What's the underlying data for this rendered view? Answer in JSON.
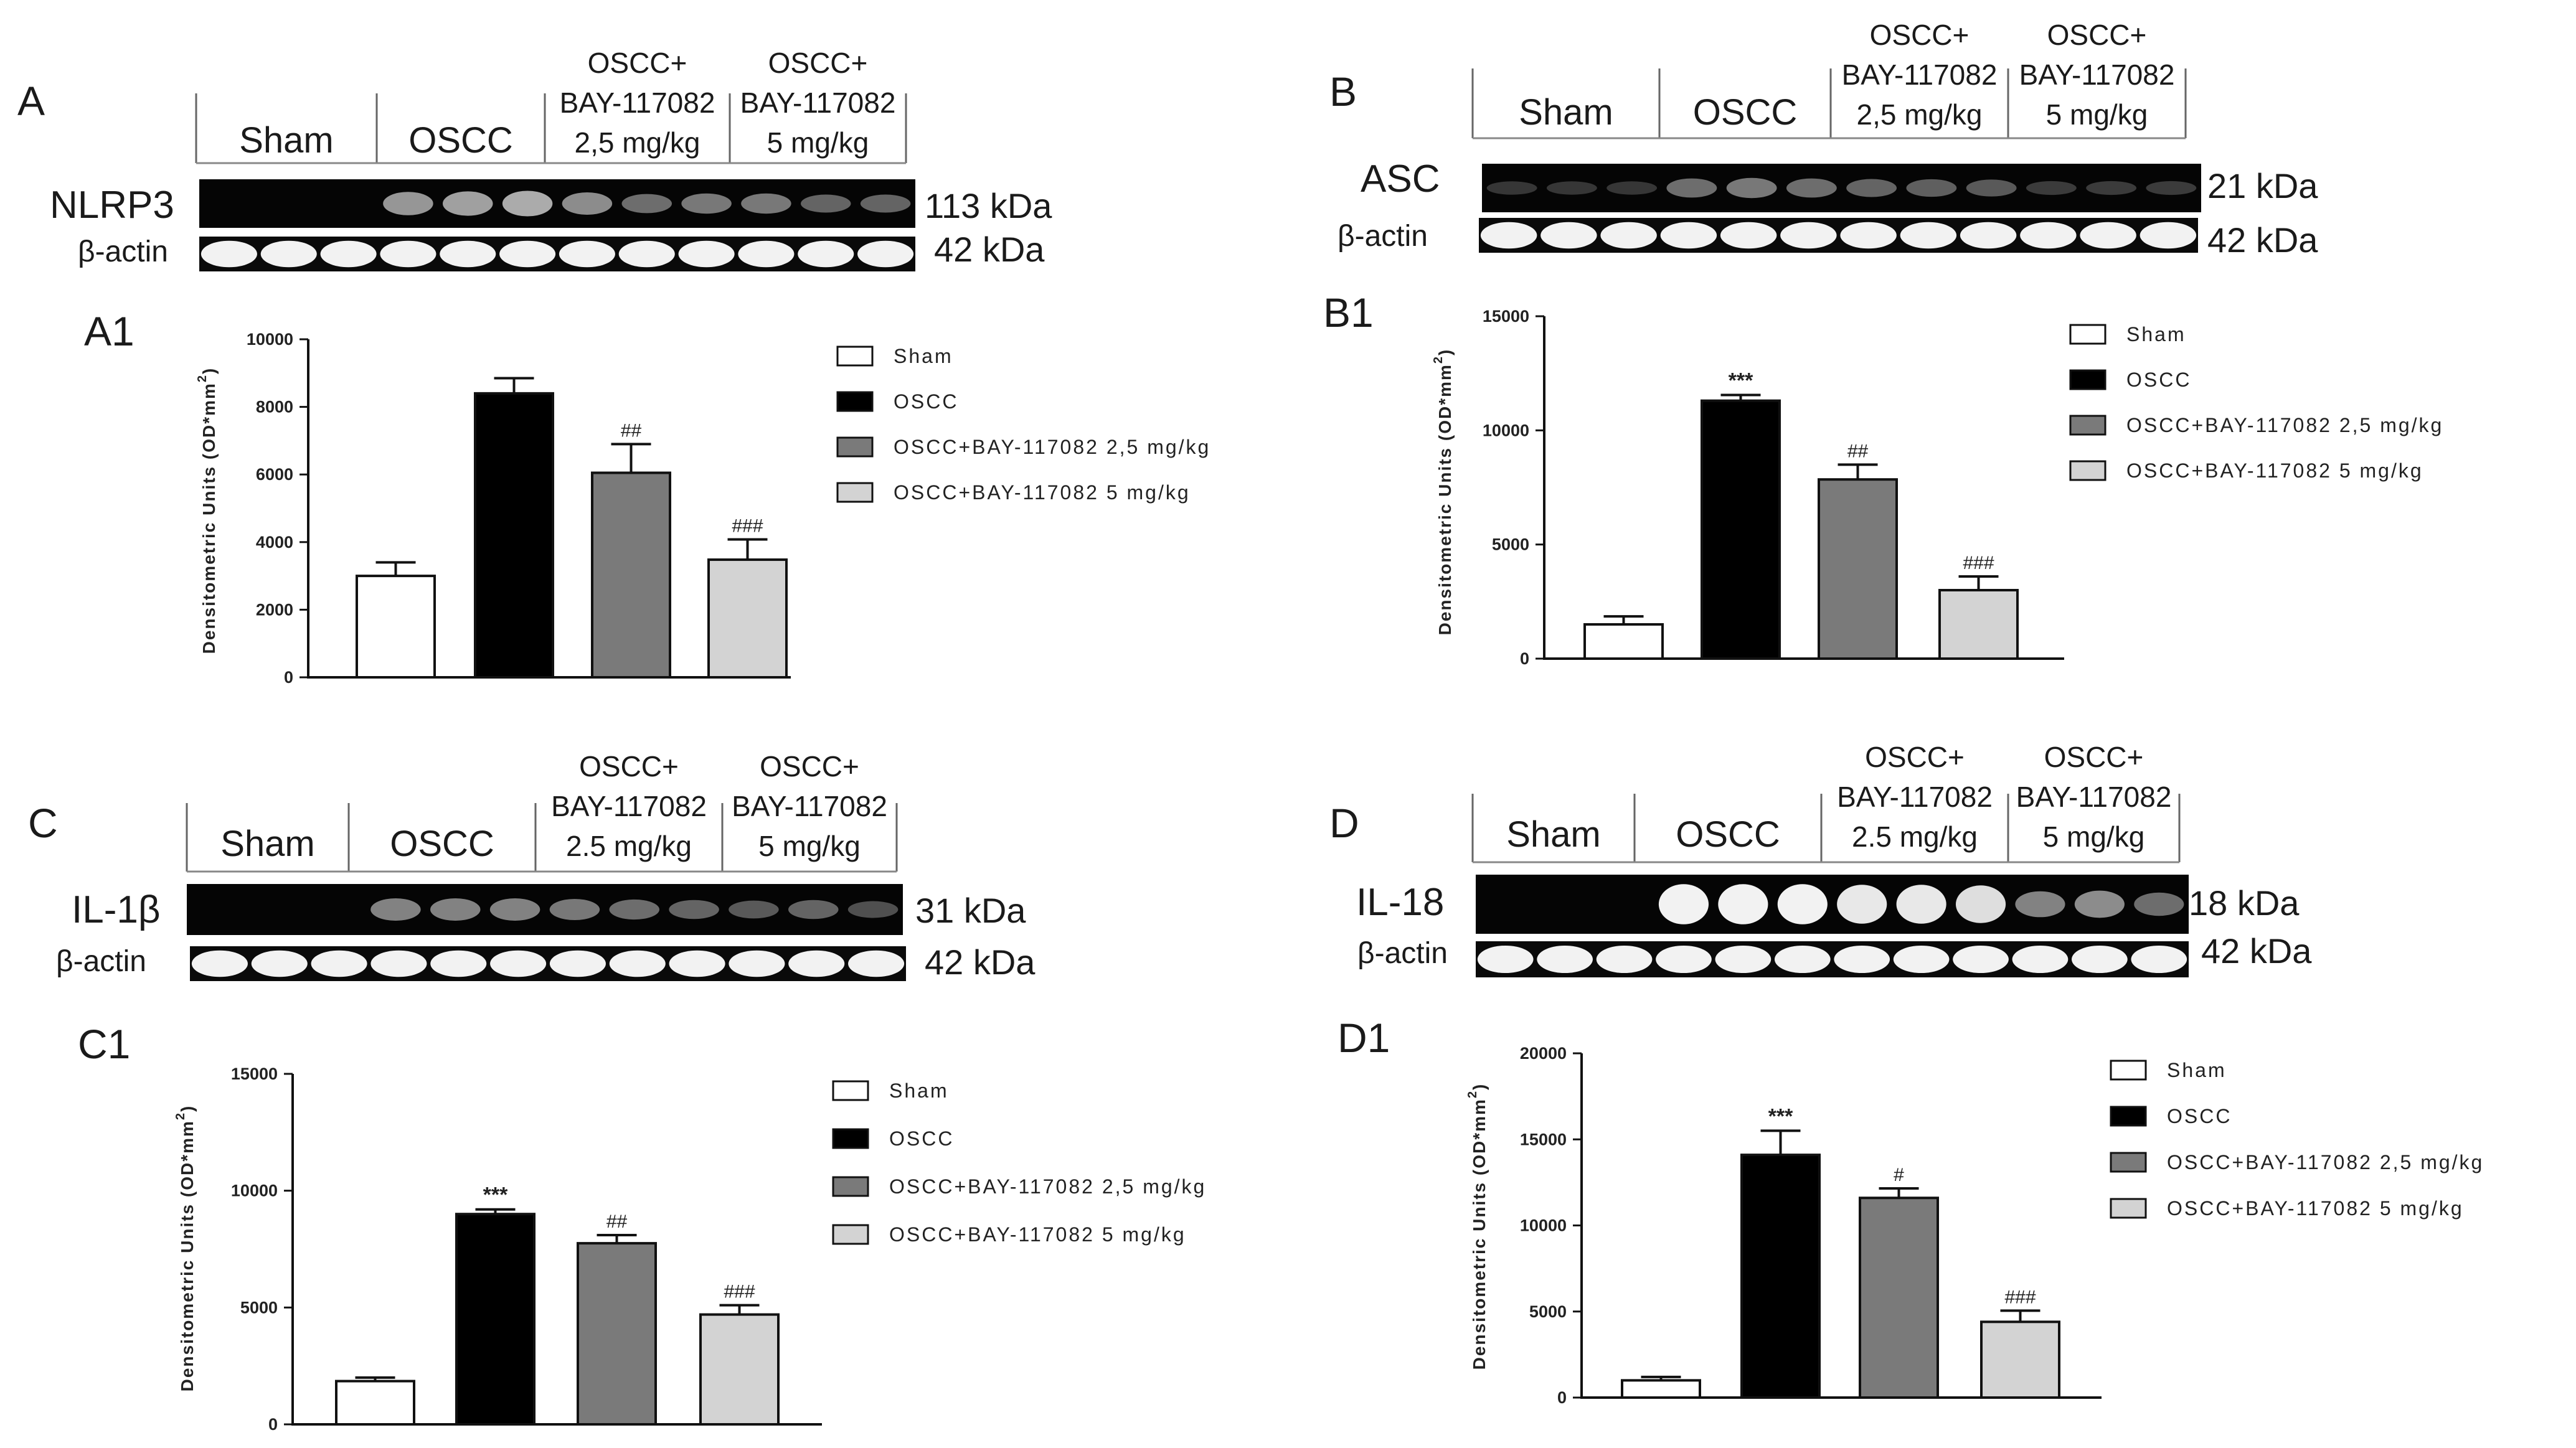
{
  "blot_panels": [
    {
      "letter": "A",
      "protein": "NLRP3",
      "protein_kda": "113 kDa",
      "loading": "β-actin",
      "loading_kda": "42 kDa",
      "groups": [
        {
          "lines": [
            "Sham"
          ]
        },
        {
          "lines": [
            "OSCC"
          ]
        },
        {
          "lines": [
            "OSCC+",
            "BAY-117082",
            "2,5 mg/kg"
          ]
        },
        {
          "lines": [
            "OSCC+",
            "BAY-117082",
            "5 mg/kg"
          ]
        }
      ],
      "band_intensity": [
        0.05,
        0.05,
        0.05,
        0.55,
        0.6,
        0.65,
        0.5,
        0.35,
        0.4,
        0.4,
        0.3,
        0.3
      ]
    },
    {
      "letter": "B",
      "protein": "ASC",
      "protein_kda": "21 kDa",
      "loading": "β-actin",
      "loading_kda": "42 kDa",
      "groups": [
        {
          "lines": [
            "Sham"
          ]
        },
        {
          "lines": [
            "OSCC"
          ]
        },
        {
          "lines": [
            "OSCC+",
            "BAY-117082",
            "2,5 mg/kg"
          ]
        },
        {
          "lines": [
            "OSCC+",
            "BAY-117082",
            "5 mg/kg"
          ]
        }
      ],
      "band_intensity": [
        0.08,
        0.08,
        0.08,
        0.35,
        0.4,
        0.35,
        0.3,
        0.28,
        0.25,
        0.1,
        0.1,
        0.1
      ]
    },
    {
      "letter": "C",
      "protein": "IL-1β",
      "protein_kda": "31 kDa",
      "loading": "β-actin",
      "loading_kda": "42 kDa",
      "groups": [
        {
          "lines": [
            "Sham"
          ]
        },
        {
          "lines": [
            "OSCC"
          ]
        },
        {
          "lines": [
            "OSCC+",
            "BAY-117082",
            "2.5 mg/kg"
          ]
        },
        {
          "lines": [
            "OSCC+",
            "BAY-117082",
            "5 mg/kg"
          ]
        }
      ],
      "band_intensity": [
        0.05,
        0.05,
        0.05,
        0.45,
        0.45,
        0.45,
        0.4,
        0.35,
        0.3,
        0.25,
        0.3,
        0.2
      ]
    },
    {
      "letter": "D",
      "protein": "IL-18",
      "protein_kda": "18 kDa",
      "loading": "β-actin",
      "loading_kda": "42 kDa",
      "groups": [
        {
          "lines": [
            "Sham"
          ]
        },
        {
          "lines": [
            "OSCC"
          ]
        },
        {
          "lines": [
            "OSCC+",
            "BAY-117082",
            "2.5 mg/kg"
          ]
        },
        {
          "lines": [
            "OSCC+",
            "BAY-117082",
            "5 mg/kg"
          ]
        }
      ],
      "band_intensity": [
        0.03,
        0.03,
        0.03,
        1.0,
        1.0,
        1.0,
        0.95,
        0.95,
        0.9,
        0.45,
        0.5,
        0.35
      ]
    }
  ],
  "chart_data": [
    {
      "panel": "A1",
      "type": "bar",
      "categories": [
        "Sham",
        "OSCC",
        "OSCC+BAY-117082 2,5 mg/kg",
        "OSCC+BAY-117082 5 mg/kg"
      ],
      "values": [
        3000,
        8400,
        6050,
        3480
      ],
      "errors": [
        400,
        450,
        850,
        600
      ],
      "significance": [
        "",
        "",
        "##",
        "###"
      ],
      "colors": [
        "#ffffff",
        "#000000",
        "#7a7a7a",
        "#d3d3d3"
      ],
      "ylabel": "Densitometric Units (OD*mm²)",
      "ylabel_main": "Densitometric Units (OD*mm",
      "ylabel_sup": "2",
      "ylabel_close": ")",
      "ylim": [
        0,
        10000
      ],
      "yticks": [
        "0",
        "2000",
        "4000",
        "6000",
        "8000",
        "10000"
      ],
      "legend": [
        "Sham",
        "OSCC",
        "OSCC+BAY-117082 2,5 mg/kg",
        "OSCC+BAY-117082 5 mg/kg"
      ]
    },
    {
      "panel": "B1",
      "type": "bar",
      "categories": [
        "Sham",
        "OSCC",
        "OSCC+BAY-117082 2,5 mg/kg",
        "OSCC+BAY-117082 5 mg/kg"
      ],
      "values": [
        1500,
        11300,
        7850,
        3000
      ],
      "errors": [
        350,
        250,
        650,
        600
      ],
      "significance": [
        "",
        "***",
        "##",
        "###"
      ],
      "colors": [
        "#ffffff",
        "#000000",
        "#7a7a7a",
        "#d3d3d3"
      ],
      "ylabel": "Densitometric Units (OD*mm²)",
      "ylabel_main": "Densitometric Units (OD*mm",
      "ylabel_sup": "2",
      "ylabel_close": ")",
      "ylim": [
        0,
        15000
      ],
      "yticks": [
        "0",
        "5000",
        "10000",
        "15000"
      ],
      "legend": [
        "Sham",
        "OSCC",
        "OSCC+BAY-117082 2,5 mg/kg",
        "OSCC+BAY-117082 5 mg/kg"
      ]
    },
    {
      "panel": "C1",
      "type": "bar",
      "categories": [
        "Sham",
        "OSCC",
        "OSCC+BAY-117082 2,5 mg/kg",
        "OSCC+BAY-117082 5 mg/kg"
      ],
      "values": [
        1850,
        9000,
        7750,
        4700
      ],
      "errors": [
        150,
        200,
        350,
        400
      ],
      "significance": [
        "",
        "***",
        "##",
        "###"
      ],
      "colors": [
        "#ffffff",
        "#000000",
        "#7a7a7a",
        "#d3d3d3"
      ],
      "ylabel": "Densitometric Units (OD*mm²)",
      "ylabel_main": "Densitometric Units (OD*mm",
      "ylabel_sup": "2",
      "ylabel_close": ")",
      "ylim": [
        0,
        15000
      ],
      "yticks": [
        "0",
        "5000",
        "10000",
        "15000"
      ],
      "legend": [
        "Sham",
        "OSCC",
        "OSCC+BAY-117082 2,5 mg/kg",
        "OSCC+BAY-117082 5 mg/kg"
      ]
    },
    {
      "panel": "D1",
      "type": "bar",
      "categories": [
        "Sham",
        "OSCC",
        "OSCC+BAY-117082 2,5 mg/kg",
        "OSCC+BAY-117082 5 mg/kg"
      ],
      "values": [
        1000,
        14100,
        11600,
        4400
      ],
      "errors": [
        200,
        1400,
        550,
        650
      ],
      "significance": [
        "",
        "***",
        "#",
        "###"
      ],
      "colors": [
        "#ffffff",
        "#000000",
        "#7a7a7a",
        "#d3d3d3"
      ],
      "ylabel": "Densitometric Units (OD*mm²)",
      "ylabel_main": "Densitometric Units (OD*mm",
      "ylabel_sup": "2",
      "ylabel_close": ")",
      "ylim": [
        0,
        20000
      ],
      "yticks": [
        "0",
        "5000",
        "10000",
        "15000",
        "20000"
      ],
      "legend": [
        "Sham",
        "OSCC",
        "OSCC+BAY-117082 2,5 mg/kg",
        "OSCC+BAY-117082 5 mg/kg"
      ]
    }
  ]
}
